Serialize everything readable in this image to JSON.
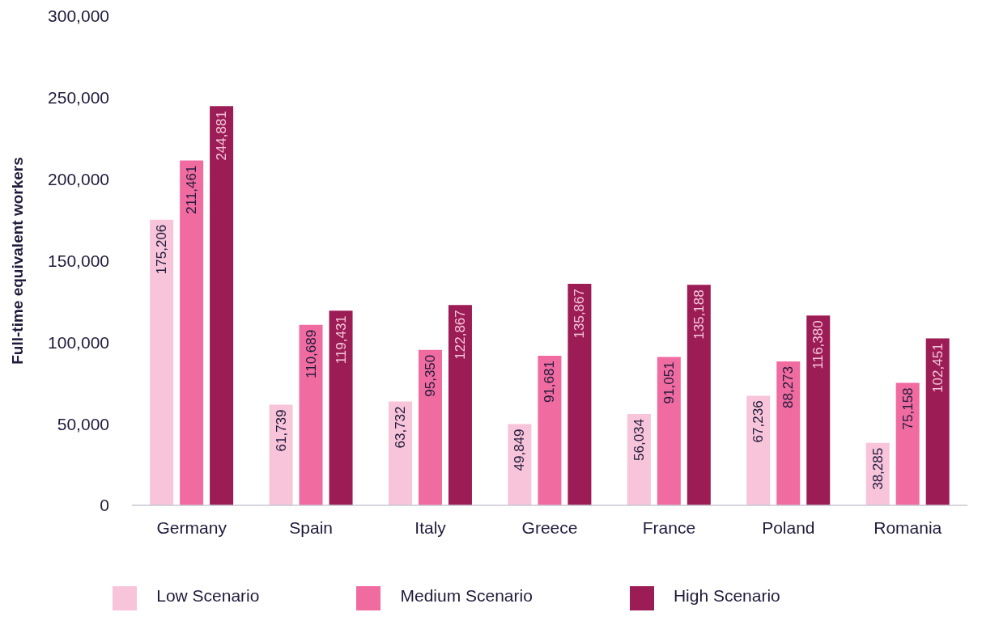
{
  "chart_data": {
    "type": "bar",
    "ylabel": "Full-time equivalent workers",
    "categories": [
      "Germany",
      "Spain",
      "Italy",
      "Greece",
      "France",
      "Poland",
      "Romania"
    ],
    "series": [
      {
        "name": "Low Scenario",
        "color": "#f7c4d9",
        "values": [
          175206,
          61739,
          63732,
          49849,
          56034,
          67236,
          38285
        ],
        "value_labels": [
          "175,206",
          "61,739",
          "63,732",
          "49,849",
          "56,034",
          "67,236",
          "38,285"
        ]
      },
      {
        "name": "Medium Scenario",
        "color": "#f06ba0",
        "values": [
          211461,
          110689,
          95350,
          91681,
          91051,
          88273,
          75158
        ],
        "value_labels": [
          "211,461",
          "110,689",
          "95,350",
          "91,681",
          "91,051",
          "88,273",
          "75,158"
        ]
      },
      {
        "name": "High Scenario",
        "color": "#9c1c55",
        "values": [
          244881,
          119431,
          122867,
          135867,
          135188,
          116380,
          102451
        ],
        "value_labels": [
          "244,881",
          "119,431",
          "122,867",
          "135,867",
          "135,188",
          "116,380",
          "102,451"
        ]
      }
    ],
    "ylim": [
      0,
      300000
    ],
    "yticks": [
      0,
      {
        "value": 50000,
        "label": "50,000"
      },
      {
        "value": 100000,
        "label": "100,000"
      },
      {
        "value": 150000,
        "label": "150,000"
      },
      {
        "value": 200000,
        "label": "200,000"
      },
      {
        "value": 250000,
        "label": "250,000"
      },
      {
        "value": 300000,
        "label": "300,000"
      }
    ],
    "grid": false,
    "legend": "bottom"
  }
}
